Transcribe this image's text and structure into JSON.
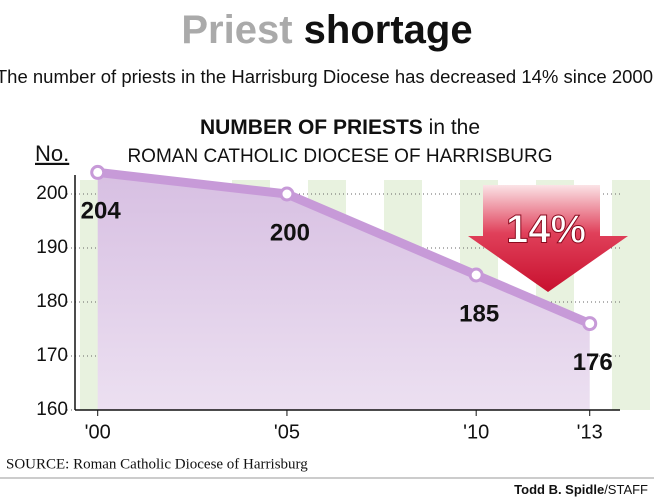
{
  "chart_data": {
    "type": "line",
    "title": [
      "Priest",
      "shortage"
    ],
    "subtitle": "The number of priests in the Harrisburg Diocese has decreased 14% since 2000.",
    "chart_title": [
      "NUMBER OF PRIESTS",
      "in the",
      "ROMAN CATHOLIC DIOCESE OF HARRISBURG"
    ],
    "y_label": "No.",
    "x": [
      2000,
      2005,
      2010,
      2013
    ],
    "series": [
      {
        "values": [
          204,
          200,
          185,
          176
        ],
        "color": "#c79ad8"
      }
    ],
    "xlim": [
      1999.4,
      2013.8
    ],
    "xticks": [
      {
        "value": 2000,
        "label": "'00"
      },
      {
        "value": 2005,
        "label": "'05"
      },
      {
        "value": 2010,
        "label": "'10"
      },
      {
        "value": 2013,
        "label": "'13"
      }
    ],
    "ylim": [
      160,
      205
    ],
    "yticks": [
      160,
      170,
      180,
      190,
      200
    ],
    "grid": true,
    "annotation": "14%",
    "source": "SOURCE:  Roman Catholic Diocese of Harrisburg",
    "credit": [
      "Todd B. Spidle",
      "/STAFF"
    ]
  }
}
